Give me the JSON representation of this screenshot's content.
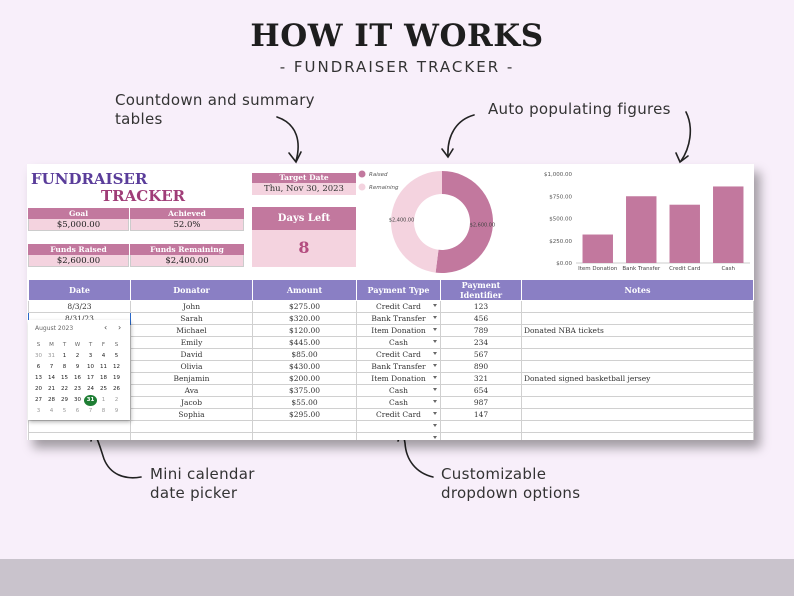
{
  "header": {
    "title": "HOW IT WORKS",
    "subtitle": "- FUNDRAISER TRACKER -"
  },
  "annotations": {
    "countdown": [
      "Countdown and summary",
      "tables"
    ],
    "auto": "Auto populating figures",
    "calendar": [
      "Mini calendar",
      "date picker"
    ],
    "dropdown": [
      "Customizable",
      "dropdown options"
    ]
  },
  "tracker": {
    "logo_line1": "FUNDRAISER",
    "logo_line2": "TRACKER",
    "goal": {
      "label": "Goal",
      "value": "$5,000.00"
    },
    "achieved": {
      "label": "Achieved",
      "value": "52.0%"
    },
    "raised": {
      "label": "Funds Raised",
      "value": "$2,600.00"
    },
    "remaining": {
      "label": "Funds Remaining",
      "value": "$2,400.00"
    },
    "target": {
      "label": "Target Date",
      "value": "Thu, Nov 30, 2023"
    },
    "days_left": {
      "label": "Days Left",
      "value": "8"
    }
  },
  "colors": {
    "accent_pink": "#c2789e",
    "light_pink": "#f4d3df",
    "header_purple": "#8a7fc4",
    "logo_purple": "#5a3d9a",
    "logo_magenta": "#a03d78",
    "calendar_today": "#1e7e34"
  },
  "chart_data": [
    {
      "type": "pie",
      "categories": [
        "Raised",
        "Remaining"
      ],
      "values": [
        2600,
        2400
      ],
      "data_labels": [
        "$2,600.00",
        "$2,400.00"
      ],
      "legend": "top-right",
      "colors": [
        "#c2789e",
        "#f4d3df"
      ]
    },
    {
      "type": "bar",
      "categories": [
        "Item Donation",
        "Bank Transfer",
        "Credit Card",
        "Cash"
      ],
      "values": [
        320,
        750,
        655,
        860
      ],
      "ylim": [
        0,
        1000
      ],
      "yticks": [
        "$0.00",
        "$250.00",
        "$500.00",
        "$750.00",
        "$1,000.00"
      ],
      "color": "#c2789e",
      "grid": false
    }
  ],
  "table": {
    "columns": [
      "Date",
      "Donator",
      "Amount",
      "Payment Type",
      "Payment Identifier",
      "Notes"
    ],
    "rows": [
      [
        "8/3/23",
        "John",
        "$275.00",
        "Credit Card",
        "123",
        ""
      ],
      [
        "8/31/23",
        "Sarah",
        "$320.00",
        "Bank Transfer",
        "456",
        ""
      ],
      [
        "",
        "Michael",
        "$120.00",
        "Item Donation",
        "789",
        "Donated NBA tickets"
      ],
      [
        "",
        "Emily",
        "$445.00",
        "Cash",
        "234",
        ""
      ],
      [
        "",
        "David",
        "$85.00",
        "Credit Card",
        "567",
        ""
      ],
      [
        "",
        "Olivia",
        "$430.00",
        "Bank Transfer",
        "890",
        ""
      ],
      [
        "",
        "Benjamin",
        "$200.00",
        "Item Donation",
        "321",
        "Donated signed basketball jersey"
      ],
      [
        "",
        "Ava",
        "$375.00",
        "Cash",
        "654",
        ""
      ],
      [
        "",
        "Jacob",
        "$55.00",
        "Cash",
        "987",
        ""
      ],
      [
        "",
        "Sophia",
        "$295.00",
        "Credit Card",
        "147",
        ""
      ],
      [
        "",
        "",
        "",
        "",
        "",
        ""
      ],
      [
        "",
        "",
        "",
        "",
        "",
        ""
      ],
      [
        "",
        "",
        "",
        "",
        "",
        ""
      ]
    ]
  },
  "calendar": {
    "month": "August 2023",
    "prev": "‹",
    "next": "›",
    "weekdays": [
      "S",
      "M",
      "T",
      "W",
      "T",
      "F",
      "S"
    ],
    "days": [
      "30",
      "31",
      "1",
      "2",
      "3",
      "4",
      "5",
      "6",
      "7",
      "8",
      "9",
      "10",
      "11",
      "12",
      "13",
      "14",
      "15",
      "16",
      "17",
      "18",
      "19",
      "20",
      "21",
      "22",
      "23",
      "24",
      "25",
      "26",
      "27",
      "28",
      "29",
      "30",
      "31",
      "1",
      "2",
      "3",
      "4",
      "5",
      "6",
      "7",
      "8",
      "9"
    ],
    "selected": "31"
  }
}
